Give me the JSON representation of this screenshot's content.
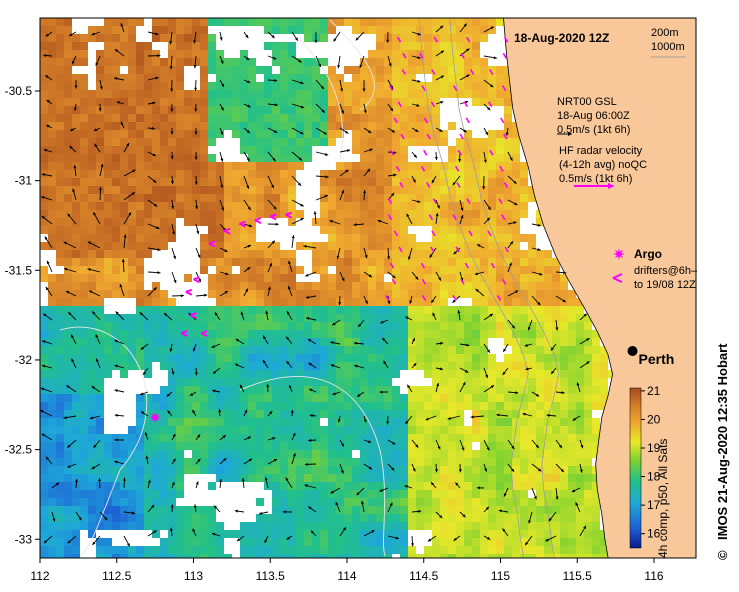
{
  "map": {
    "title": "18-Aug-2020 12Z",
    "depth_contours": [
      "200m",
      "1000m"
    ],
    "lon_ticks": [
      "112",
      "112.5",
      "113",
      "113.5",
      "114",
      "114.5",
      "115",
      "115.5",
      "116"
    ],
    "lat_ticks": [
      "-30.5",
      "-31",
      "-31.5",
      "-32",
      "-32.5",
      "-33"
    ],
    "lon_range": [
      112,
      116.3
    ],
    "lat_range": [
      -33.1,
      -30.1
    ],
    "legend": {
      "gsl_line1": "NRT00 GSL",
      "gsl_line2": "18-Aug 06:00Z",
      "gsl_line3": "0.5m/s (1kt 6h)",
      "hf_line1": "HF radar velocity",
      "hf_line2": "(4-12h avg) noQC",
      "hf_line3": "0.5m/s (1kt 6h)",
      "argo_label": "Argo",
      "drifters_line1": "drifters@6h–",
      "drifters_line2": "to 19/08 12Z"
    },
    "city": {
      "name": "Perth",
      "lon": 115.86,
      "lat": -31.95
    },
    "argo_float": {
      "lon": 112.75,
      "lat": -32.32
    },
    "colorbar": {
      "ticks": [
        "21",
        "20",
        "19",
        "18",
        "17",
        "16"
      ],
      "min": 15.5,
      "max": 21.1,
      "caption": "4h comp, p50, All Sats"
    },
    "credit": "IMOS 21-Aug-2020 12:35 Hobart",
    "copyright_symbol": "©",
    "colors": {
      "land": "#f9c89a",
      "sst_warm": "#b3541e",
      "sst_cool": "#1e6fd0",
      "drifter": "#ff00ff",
      "contour": "#9e9e9e"
    },
    "icons": [
      "argo-star-icon",
      "drifter-arrow-icon",
      "velocity-arrow-icon",
      "city-dot-icon",
      "copyright-icon"
    ]
  }
}
